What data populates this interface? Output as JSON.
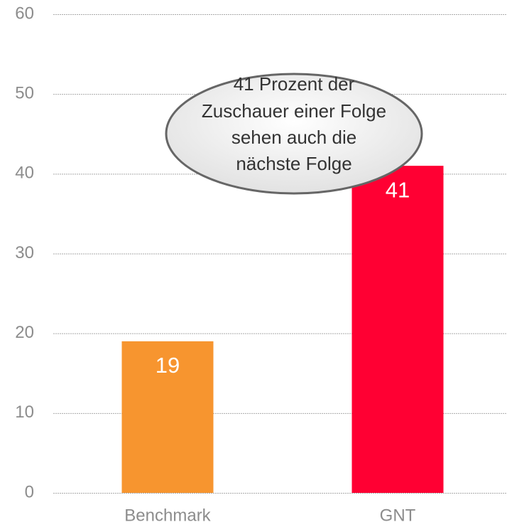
{
  "chart_data": {
    "type": "bar",
    "categories": [
      "Benchmark",
      "GNT"
    ],
    "values": [
      19,
      41
    ],
    "colors": [
      "#f7952f",
      "#ff0033"
    ],
    "ylim": [
      0,
      60
    ],
    "yticks": [
      0,
      10,
      20,
      30,
      40,
      50,
      60
    ],
    "grid": true,
    "annotation": [
      "41 Prozent der",
      "Zuschauer einer Folge",
      "sehen auch die",
      "nächste Folge"
    ]
  }
}
